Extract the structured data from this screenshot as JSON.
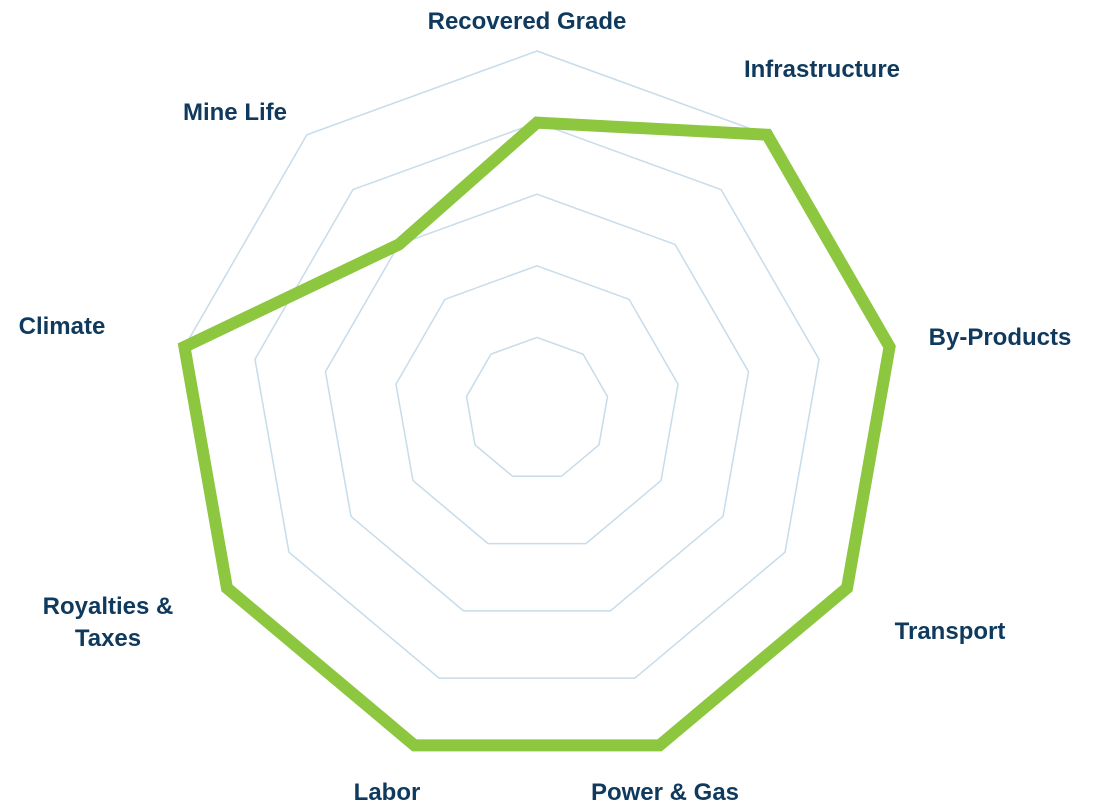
{
  "chart_data": {
    "type": "radar",
    "categories": [
      "Recovered Grade",
      "Infrastructure",
      "By-Products",
      "Transport",
      "Power & Gas",
      "Labor",
      "Royalties & Taxes",
      "Climate",
      "Mine Life"
    ],
    "values": [
      80,
      100,
      100,
      100,
      100,
      100,
      100,
      100,
      60
    ],
    "color": "#8dc63f",
    "rlim": [
      0,
      100
    ],
    "rticks": [
      20,
      40,
      60,
      80,
      100
    ],
    "grid": true
  }
}
